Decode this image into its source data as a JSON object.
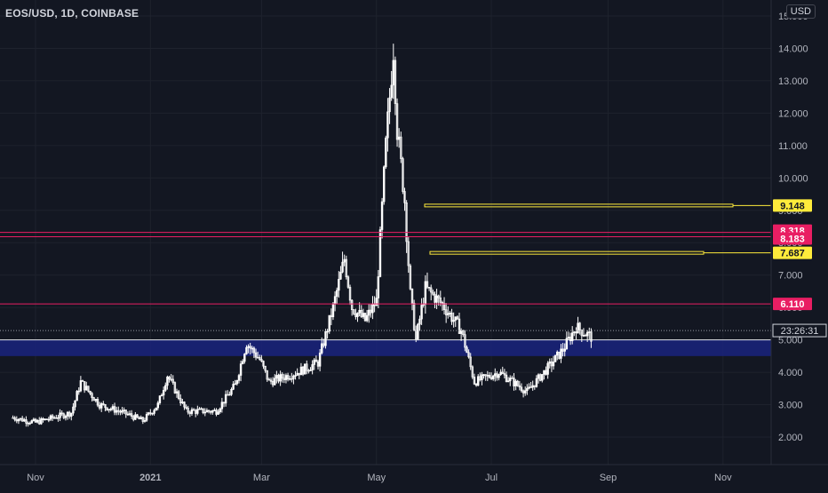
{
  "symbol_title": "EOS/USD, 1D, COINBASE",
  "currency_button": "USD",
  "countdown": "23:26:31",
  "colors": {
    "background": "#131722",
    "candle": "#ffffff",
    "yellow": "#ffeb3b",
    "pink": "#e91e63",
    "zone": "#1a237e",
    "grid": "#1e222d",
    "axis_text": "#b2b5be"
  },
  "chart_data": {
    "type": "candlestick",
    "title": "EOS/USD, 1D, COINBASE",
    "x_tick_labels": [
      "Nov",
      "2021",
      "Mar",
      "May",
      "Jul",
      "Sep",
      "Nov"
    ],
    "y_tick_labels": [
      "2.000",
      "3.000",
      "4.000",
      "5.000",
      "6.000",
      "7.000",
      "8.000",
      "9.000",
      "10.000",
      "11.000",
      "12.000",
      "13.000",
      "14.000",
      "15.000"
    ],
    "ylim": [
      1.5,
      15.2
    ],
    "series_description": "EOS/USD daily candles from late Oct 2020 to late Aug 2021",
    "price_path": [
      {
        "date": "2020-10-20",
        "close": 2.6
      },
      {
        "date": "2020-11-01",
        "close": 2.45
      },
      {
        "date": "2020-11-20",
        "close": 2.75
      },
      {
        "date": "2020-11-25",
        "close": 3.7
      },
      {
        "date": "2020-12-05",
        "close": 3.0
      },
      {
        "date": "2020-12-20",
        "close": 2.7
      },
      {
        "date": "2020-12-28",
        "close": 2.5
      },
      {
        "date": "2021-01-05",
        "close": 3.0
      },
      {
        "date": "2021-01-10",
        "close": 3.9
      },
      {
        "date": "2021-01-20",
        "close": 2.8
      },
      {
        "date": "2021-02-05",
        "close": 2.8
      },
      {
        "date": "2021-02-15",
        "close": 3.6
      },
      {
        "date": "2021-02-21",
        "close": 4.9
      },
      {
        "date": "2021-02-28",
        "close": 4.4
      },
      {
        "date": "2021-03-05",
        "close": 3.7
      },
      {
        "date": "2021-03-20",
        "close": 4.0
      },
      {
        "date": "2021-03-31",
        "close": 4.3
      },
      {
        "date": "2021-04-08",
        "close": 6.0
      },
      {
        "date": "2021-04-14",
        "close": 7.5
      },
      {
        "date": "2021-04-18",
        "close": 6.0
      },
      {
        "date": "2021-04-25",
        "close": 5.6
      },
      {
        "date": "2021-05-01",
        "close": 6.2
      },
      {
        "date": "2021-05-06",
        "close": 11.0
      },
      {
        "date": "2021-05-10",
        "close": 14.0
      },
      {
        "date": "2021-05-12",
        "close": 11.5
      },
      {
        "date": "2021-05-16",
        "close": 9.3
      },
      {
        "date": "2021-05-19",
        "close": 6.4
      },
      {
        "date": "2021-05-22",
        "close": 5.0
      },
      {
        "date": "2021-05-27",
        "close": 6.6
      },
      {
        "date": "2021-06-05",
        "close": 6.1
      },
      {
        "date": "2021-06-15",
        "close": 5.3
      },
      {
        "date": "2021-06-22",
        "close": 3.7
      },
      {
        "date": "2021-07-05",
        "close": 4.0
      },
      {
        "date": "2021-07-20",
        "close": 3.4
      },
      {
        "date": "2021-08-01",
        "close": 4.2
      },
      {
        "date": "2021-08-08",
        "close": 4.7
      },
      {
        "date": "2021-08-15",
        "close": 5.4
      },
      {
        "date": "2021-08-20",
        "close": 5.2
      },
      {
        "date": "2021-08-23",
        "close": 5.1
      }
    ],
    "horizontal_levels": [
      {
        "label": "9.148",
        "value": 9.148,
        "color": "#ffeb3b",
        "style": "ray"
      },
      {
        "label": "8.318",
        "value": 8.318,
        "color": "#e91e63",
        "style": "line"
      },
      {
        "label": "8.183",
        "value": 8.183,
        "color": "#e91e63",
        "style": "line"
      },
      {
        "label": "7.687",
        "value": 7.687,
        "color": "#ffeb3b",
        "style": "ray"
      },
      {
        "label": "6.110",
        "value": 6.11,
        "color": "#e91e63",
        "style": "line"
      }
    ],
    "zone": {
      "from": 4.5,
      "to": 5.0,
      "color": "#1a237e"
    },
    "last_price": 5.07
  }
}
